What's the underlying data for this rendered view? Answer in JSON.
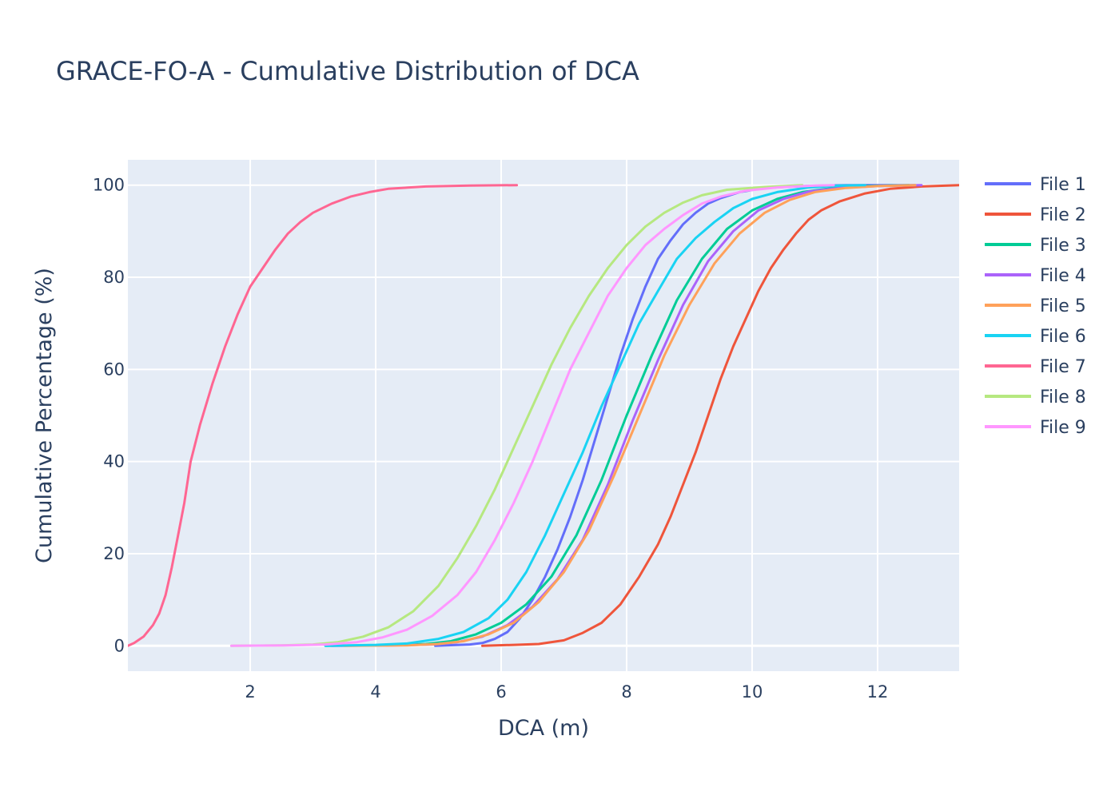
{
  "chart_data": {
    "type": "line",
    "title": "GRACE-FO-A - Cumulative Distribution of DCA",
    "xlabel": "DCA (m)",
    "ylabel": "Cumulative Percentage (%)",
    "xlim": [
      0.05,
      13.3
    ],
    "ylim": [
      -5.5,
      105.5
    ],
    "xticks": [
      2,
      4,
      6,
      8,
      10,
      12
    ],
    "yticks": [
      0,
      20,
      40,
      60,
      80,
      100
    ],
    "grid": true,
    "legend_position": "right",
    "plot_background": "#e5ecf6",
    "series": [
      {
        "name": "File 1",
        "color": "#636efa",
        "points": [
          [
            4.95,
            0
          ],
          [
            5.5,
            0.3
          ],
          [
            5.7,
            0.6
          ],
          [
            5.9,
            1.5
          ],
          [
            6.1,
            3
          ],
          [
            6.3,
            6
          ],
          [
            6.5,
            10
          ],
          [
            6.7,
            15
          ],
          [
            6.9,
            21
          ],
          [
            7.1,
            28
          ],
          [
            7.3,
            36
          ],
          [
            7.5,
            45
          ],
          [
            7.7,
            54
          ],
          [
            7.9,
            63
          ],
          [
            8.1,
            71
          ],
          [
            8.3,
            78
          ],
          [
            8.5,
            84
          ],
          [
            8.7,
            88
          ],
          [
            8.9,
            91.5
          ],
          [
            9.1,
            94
          ],
          [
            9.3,
            96
          ],
          [
            9.5,
            97.2
          ],
          [
            9.8,
            98.5
          ],
          [
            10.2,
            99.4
          ],
          [
            10.8,
            99.8
          ],
          [
            11.5,
            100
          ],
          [
            12.6,
            100
          ]
        ]
      },
      {
        "name": "File 2",
        "color": "#ef553b",
        "points": [
          [
            5.7,
            0
          ],
          [
            6.2,
            0.2
          ],
          [
            6.6,
            0.4
          ],
          [
            7.0,
            1.2
          ],
          [
            7.3,
            2.8
          ],
          [
            7.6,
            5
          ],
          [
            7.9,
            9
          ],
          [
            8.2,
            15
          ],
          [
            8.5,
            22
          ],
          [
            8.7,
            28
          ],
          [
            8.9,
            35
          ],
          [
            9.1,
            42
          ],
          [
            9.3,
            50
          ],
          [
            9.5,
            58
          ],
          [
            9.7,
            65
          ],
          [
            9.9,
            71
          ],
          [
            10.1,
            77
          ],
          [
            10.3,
            82
          ],
          [
            10.5,
            86
          ],
          [
            10.7,
            89.5
          ],
          [
            10.9,
            92.5
          ],
          [
            11.1,
            94.5
          ],
          [
            11.4,
            96.5
          ],
          [
            11.8,
            98.2
          ],
          [
            12.2,
            99.2
          ],
          [
            12.7,
            99.7
          ],
          [
            13.3,
            100
          ]
        ]
      },
      {
        "name": "File 3",
        "color": "#00cc96",
        "points": [
          [
            3.2,
            0
          ],
          [
            4.2,
            0.1
          ],
          [
            4.8,
            0.4
          ],
          [
            5.2,
            1
          ],
          [
            5.6,
            2.5
          ],
          [
            6.0,
            5
          ],
          [
            6.4,
            9
          ],
          [
            6.8,
            15
          ],
          [
            7.2,
            24
          ],
          [
            7.6,
            36
          ],
          [
            8.0,
            50
          ],
          [
            8.4,
            63
          ],
          [
            8.8,
            75
          ],
          [
            9.2,
            84
          ],
          [
            9.6,
            90.5
          ],
          [
            10.0,
            94.5
          ],
          [
            10.4,
            97
          ],
          [
            10.8,
            98.5
          ],
          [
            11.3,
            99.4
          ],
          [
            11.8,
            99.8
          ],
          [
            12.5,
            100
          ]
        ]
      },
      {
        "name": "File 4",
        "color": "#ab63fa",
        "points": [
          [
            3.3,
            0
          ],
          [
            4.3,
            0.1
          ],
          [
            4.9,
            0.3
          ],
          [
            5.3,
            0.8
          ],
          [
            5.7,
            2
          ],
          [
            6.1,
            4.5
          ],
          [
            6.5,
            8.5
          ],
          [
            6.9,
            14.5
          ],
          [
            7.3,
            23
          ],
          [
            7.7,
            35
          ],
          [
            8.1,
            49
          ],
          [
            8.5,
            62
          ],
          [
            8.9,
            74
          ],
          [
            9.3,
            83.5
          ],
          [
            9.7,
            90
          ],
          [
            10.1,
            94.5
          ],
          [
            10.5,
            97
          ],
          [
            10.9,
            98.6
          ],
          [
            11.4,
            99.4
          ],
          [
            12.0,
            99.8
          ],
          [
            12.7,
            100
          ]
        ]
      },
      {
        "name": "File 5",
        "color": "#ffa15a",
        "points": [
          [
            3.5,
            0
          ],
          [
            4.5,
            0.1
          ],
          [
            5.0,
            0.4
          ],
          [
            5.4,
            1
          ],
          [
            5.8,
            2.5
          ],
          [
            6.2,
            5
          ],
          [
            6.6,
            9.5
          ],
          [
            7.0,
            16
          ],
          [
            7.4,
            25
          ],
          [
            7.8,
            37
          ],
          [
            8.2,
            50
          ],
          [
            8.6,
            63
          ],
          [
            9.0,
            74
          ],
          [
            9.4,
            83
          ],
          [
            9.8,
            89.5
          ],
          [
            10.2,
            94
          ],
          [
            10.6,
            96.8
          ],
          [
            11.0,
            98.5
          ],
          [
            11.5,
            99.4
          ],
          [
            12.0,
            99.8
          ],
          [
            12.6,
            100
          ]
        ]
      },
      {
        "name": "File 6",
        "color": "#19d3f3",
        "points": [
          [
            3.2,
            0
          ],
          [
            4.0,
            0.2
          ],
          [
            4.5,
            0.5
          ],
          [
            5.0,
            1.5
          ],
          [
            5.4,
            3
          ],
          [
            5.8,
            6
          ],
          [
            6.1,
            10
          ],
          [
            6.4,
            16
          ],
          [
            6.7,
            24
          ],
          [
            7.0,
            33
          ],
          [
            7.3,
            42
          ],
          [
            7.6,
            52
          ],
          [
            7.9,
            61
          ],
          [
            8.2,
            70
          ],
          [
            8.5,
            77
          ],
          [
            8.8,
            84
          ],
          [
            9.1,
            88.5
          ],
          [
            9.4,
            92
          ],
          [
            9.7,
            95
          ],
          [
            10.0,
            97
          ],
          [
            10.4,
            98.5
          ],
          [
            10.9,
            99.5
          ],
          [
            11.4,
            99.9
          ],
          [
            11.8,
            100
          ]
        ]
      },
      {
        "name": "File 7",
        "color": "#ff6692",
        "points": [
          [
            0.05,
            0
          ],
          [
            0.15,
            0.6
          ],
          [
            0.3,
            2
          ],
          [
            0.45,
            4.5
          ],
          [
            0.55,
            7
          ],
          [
            0.65,
            11
          ],
          [
            0.75,
            17
          ],
          [
            0.85,
            24
          ],
          [
            0.95,
            31
          ],
          [
            1.05,
            40
          ],
          [
            1.2,
            48
          ],
          [
            1.4,
            57
          ],
          [
            1.6,
            65
          ],
          [
            1.8,
            72
          ],
          [
            2.0,
            78
          ],
          [
            2.2,
            82
          ],
          [
            2.4,
            86
          ],
          [
            2.6,
            89.5
          ],
          [
            2.8,
            92
          ],
          [
            3.0,
            94
          ],
          [
            3.3,
            96
          ],
          [
            3.6,
            97.5
          ],
          [
            3.9,
            98.5
          ],
          [
            4.2,
            99.2
          ],
          [
            4.8,
            99.7
          ],
          [
            5.5,
            99.9
          ],
          [
            6.25,
            100
          ]
        ]
      },
      {
        "name": "File 8",
        "color": "#b6e880",
        "points": [
          [
            1.7,
            0
          ],
          [
            2.5,
            0.1
          ],
          [
            3.0,
            0.3
          ],
          [
            3.4,
            0.8
          ],
          [
            3.8,
            2
          ],
          [
            4.2,
            4
          ],
          [
            4.6,
            7.5
          ],
          [
            5.0,
            13
          ],
          [
            5.3,
            19
          ],
          [
            5.6,
            26
          ],
          [
            5.9,
            34
          ],
          [
            6.2,
            43
          ],
          [
            6.5,
            52
          ],
          [
            6.8,
            61
          ],
          [
            7.1,
            69
          ],
          [
            7.4,
            76
          ],
          [
            7.7,
            82
          ],
          [
            8.0,
            87
          ],
          [
            8.3,
            91
          ],
          [
            8.6,
            94
          ],
          [
            8.9,
            96.2
          ],
          [
            9.2,
            97.8
          ],
          [
            9.6,
            99
          ],
          [
            10.2,
            99.6
          ],
          [
            10.8,
            100
          ]
        ]
      },
      {
        "name": "File 9",
        "color": "#ff97ff",
        "points": [
          [
            1.7,
            0
          ],
          [
            2.6,
            0.1
          ],
          [
            3.2,
            0.3
          ],
          [
            3.7,
            0.8
          ],
          [
            4.1,
            1.8
          ],
          [
            4.5,
            3.5
          ],
          [
            4.9,
            6.5
          ],
          [
            5.3,
            11
          ],
          [
            5.6,
            16
          ],
          [
            5.9,
            23
          ],
          [
            6.2,
            31
          ],
          [
            6.5,
            40
          ],
          [
            6.8,
            50
          ],
          [
            7.1,
            60
          ],
          [
            7.4,
            68
          ],
          [
            7.7,
            76
          ],
          [
            8.0,
            82
          ],
          [
            8.3,
            87
          ],
          [
            8.6,
            90.5
          ],
          [
            8.9,
            93.5
          ],
          [
            9.2,
            96
          ],
          [
            9.5,
            97.5
          ],
          [
            9.9,
            98.8
          ],
          [
            10.4,
            99.5
          ],
          [
            11.0,
            99.9
          ],
          [
            11.3,
            100
          ]
        ]
      }
    ]
  }
}
